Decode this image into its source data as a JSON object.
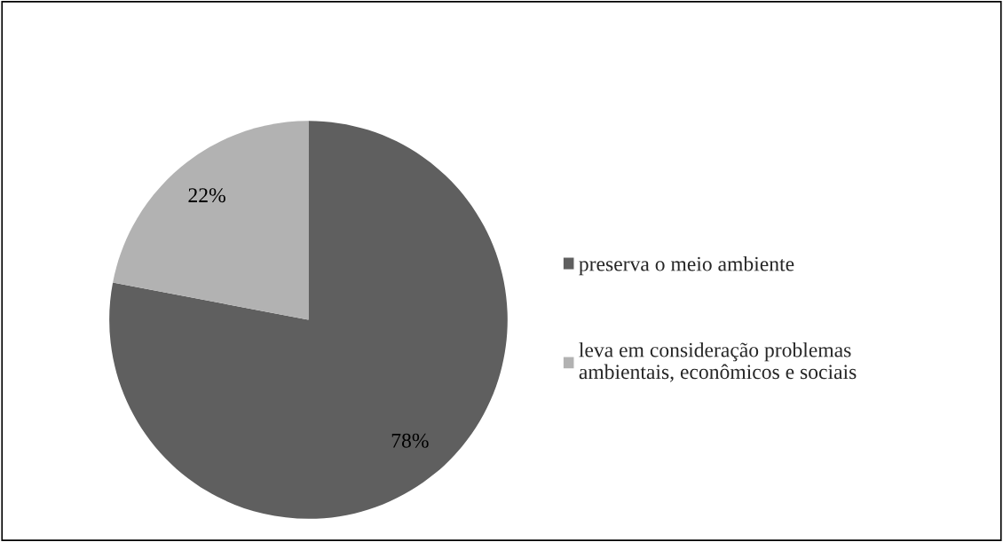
{
  "chart_data": {
    "type": "pie",
    "categories": [
      "preserva o meio ambiente",
      "leva em consideração problemas\nambientais, econômicos e sociais"
    ],
    "values": [
      78,
      22
    ],
    "colors": [
      "#5f5f5f",
      "#b2b2b2"
    ],
    "value_labels": [
      "78%",
      "22%"
    ],
    "legend": "right"
  }
}
